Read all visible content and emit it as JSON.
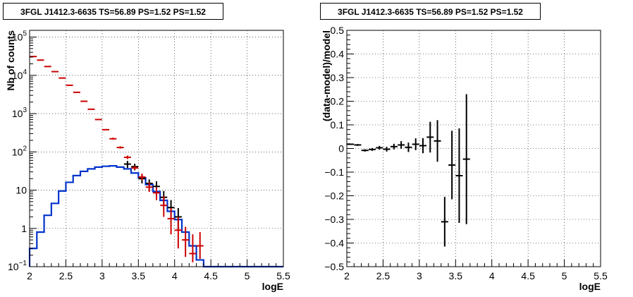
{
  "chart_data": [
    {
      "type": "line",
      "title": "3FGL J1412.3-6635 TS=56.89 PS=1.52 PS=1.52",
      "xlabel": "logE",
      "ylabel": "Nb of counts",
      "xlim": [
        2,
        5.5
      ],
      "ylim": [
        0.1,
        150000
      ],
      "yscale": "log",
      "grid": true,
      "xticks": [
        "2",
        "2.5",
        "3",
        "3.5",
        "4",
        "4.5",
        "5",
        "5.5"
      ],
      "yticks": [
        {
          "value": 0.1,
          "base": "10",
          "exp": "−1"
        },
        {
          "value": 1,
          "base": "1",
          "exp": ""
        },
        {
          "value": 10,
          "base": "10",
          "exp": ""
        },
        {
          "value": 100,
          "base": "10",
          "exp": "2"
        },
        {
          "value": 1000,
          "base": "10",
          "exp": "3"
        },
        {
          "value": 10000,
          "base": "10",
          "exp": "4"
        },
        {
          "value": 100000,
          "base": "10",
          "exp": "5"
        }
      ],
      "colors": {
        "model_total": "#cc0000",
        "source": "#0033cc",
        "data": "#000000"
      },
      "bin_edges": [
        2.0,
        2.1,
        2.2,
        2.3,
        2.4,
        2.5,
        2.6,
        2.7,
        2.8,
        2.9,
        3.0,
        3.1,
        3.2,
        3.3,
        3.4,
        3.5,
        3.6,
        3.7,
        3.8,
        3.9,
        4.0,
        4.1,
        4.2,
        4.3,
        4.4,
        4.5,
        4.6,
        4.7,
        4.8,
        4.9,
        5.0,
        5.1,
        5.2,
        5.3,
        5.4,
        5.5
      ],
      "source_model": [
        0.3,
        0.8,
        2.2,
        4.5,
        9.5,
        16,
        24,
        31,
        36,
        40,
        42,
        43,
        40,
        36,
        28,
        21,
        14,
        9.2,
        5.4,
        2.8,
        1.7,
        0.8,
        0.35,
        0.15,
        0.1,
        0.1,
        0.1,
        0.1,
        0.1,
        0.1,
        0.1,
        0.1,
        0.1,
        0.1,
        0.1
      ],
      "series": [
        {
          "name": "data",
          "x": [
            3.35,
            3.45,
            3.55,
            3.65,
            3.75,
            3.85,
            3.95,
            4.05
          ],
          "y": [
            48,
            41,
            20,
            15,
            12.5,
            6.5,
            3.5,
            2
          ],
          "ylow": [
            38,
            33,
            15,
            11,
            8.5,
            3.8,
            1.8,
            0.9
          ],
          "yhigh": [
            58,
            49,
            26,
            19,
            17,
            9.5,
            5.5,
            3.4
          ]
        },
        {
          "name": "model",
          "x": [
            2.05,
            2.15,
            2.25,
            2.35,
            2.45,
            2.55,
            2.65,
            2.75,
            2.85,
            2.95,
            3.05,
            3.15,
            3.25,
            3.35,
            3.45,
            3.55,
            3.65,
            3.75,
            3.85,
            3.95,
            4.05,
            4.15,
            4.25,
            4.35
          ],
          "y": [
            31000,
            25000,
            17000,
            12500,
            8500,
            5500,
            3600,
            2100,
            1300,
            700,
            380,
            220,
            130,
            72,
            38,
            22,
            12,
            8.5,
            4,
            1.8,
            0.9,
            0.5,
            0.22,
            0.35
          ],
          "ylow": [
            31000,
            25000,
            17000,
            12500,
            8500,
            5500,
            3600,
            2100,
            1300,
            700,
            380,
            210,
            122,
            65,
            34,
            18,
            9,
            5.5,
            2,
            0.7,
            0.3,
            0.18,
            0.13,
            0.16
          ],
          "yhigh": [
            31000,
            25000,
            17000,
            12500,
            8500,
            5500,
            3600,
            2100,
            1300,
            700,
            380,
            235,
            140,
            80,
            43,
            27,
            16,
            12,
            7,
            3.4,
            2,
            1.1,
            0.7,
            0.8
          ]
        }
      ]
    },
    {
      "type": "scatter",
      "title": "3FGL J1412.3-6635 TS=56.89 PS=1.52 PS=1.52",
      "xlabel": "logE",
      "ylabel": "(data-model)/model",
      "xlim": [
        2,
        5.5
      ],
      "ylim": [
        -0.5,
        0.5
      ],
      "grid": true,
      "xticks": [
        "2",
        "2.5",
        "3",
        "3.5",
        "4",
        "4.5",
        "5",
        "5.5"
      ],
      "yticks": [
        "−0.5",
        "−0.4",
        "−0.3",
        "−0.2",
        "−0.1",
        "0",
        "0.1",
        "0.2",
        "0.3",
        "0.4",
        "0.5"
      ],
      "series": [
        {
          "name": "residuals",
          "x": [
            2.05,
            2.15,
            2.25,
            2.35,
            2.45,
            2.55,
            2.65,
            2.75,
            2.85,
            2.95,
            3.05,
            3.15,
            3.25,
            3.35,
            3.45,
            3.55,
            3.65
          ],
          "y": [
            0.018,
            0.015,
            -0.008,
            -0.004,
            0.003,
            -0.003,
            0.008,
            0.015,
            0.005,
            0.018,
            0.012,
            0.048,
            0.032,
            -0.31,
            -0.07,
            -0.115,
            -0.045
          ],
          "yerr": [
            0.003,
            0.004,
            0.005,
            0.006,
            0.008,
            0.01,
            0.012,
            0.016,
            0.02,
            0.025,
            0.032,
            0.065,
            0.088,
            0.105,
            0.145,
            0.2,
            0.275
          ]
        }
      ]
    }
  ]
}
